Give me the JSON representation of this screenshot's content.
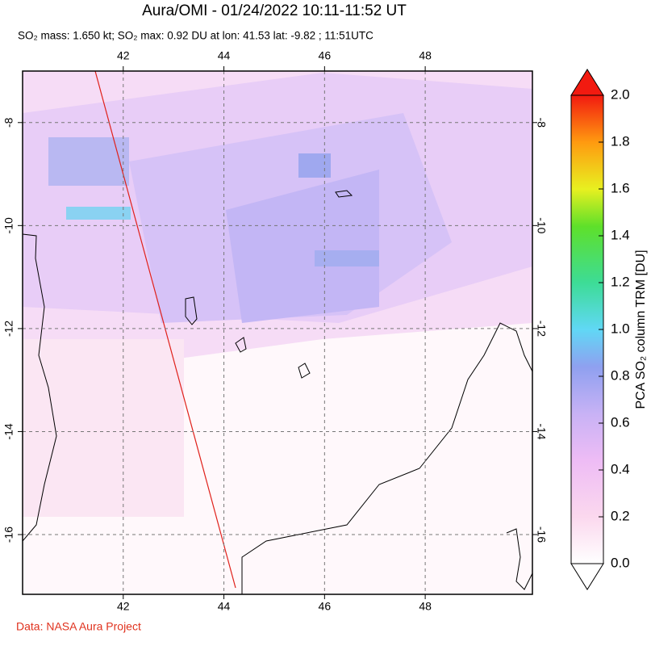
{
  "chart_data": {
    "type": "map",
    "title": "Aura/OMI - 01/24/2022 10:11-11:52 UT",
    "subtitle": "SO₂ mass: 1.650 kt; SO₂ max: 0.92 DU at lon: 41.53 lat: -9.82 ; 11:51UTC",
    "xlim": [
      40,
      50.13
    ],
    "ylim": [
      -17.16,
      -7.0
    ],
    "xticks": [
      42,
      44,
      46,
      48
    ],
    "yticks": [
      -8,
      -10,
      -12,
      -14,
      -16
    ],
    "grid": true,
    "colorbar": {
      "label": "PCA SO₂ column TRM [DU]",
      "lim": [
        0,
        2
      ],
      "ticks": [
        {
          "value": 0,
          "label": "0.0"
        },
        {
          "value": 0.2,
          "label": "0.2"
        },
        {
          "value": 0.4,
          "label": "0.4"
        },
        {
          "value": 0.6,
          "label": "0.6"
        },
        {
          "value": 0.8,
          "label": "0.8"
        },
        {
          "value": 1.0,
          "label": "1.0"
        },
        {
          "value": 1.2,
          "label": "1.2"
        },
        {
          "value": 1.4,
          "label": "1.4"
        },
        {
          "value": 1.6,
          "label": "1.6"
        },
        {
          "value": 1.8,
          "label": "1.8"
        },
        {
          "value": 2.0,
          "label": "2.0"
        }
      ]
    },
    "footer": "Data: NASA Aura Project"
  }
}
